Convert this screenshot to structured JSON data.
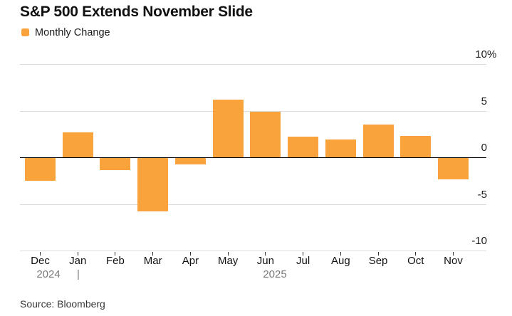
{
  "title": "S&P 500 Extends November Slide",
  "legend": {
    "label": "Monthly Change",
    "swatch_color": "#F8A33B"
  },
  "source": "Source: Bloomberg",
  "colors": {
    "bar": "#F8A33B",
    "gridline": "#DBDBDB",
    "zero_line": "#000000",
    "year_text": "#7A7A7A",
    "background": "#FFFFFF"
  },
  "chart_data": {
    "type": "bar",
    "title": "S&P 500 Extends November Slide",
    "series_name": "Monthly Change",
    "categories": [
      "Dec",
      "Jan",
      "Feb",
      "Mar",
      "Apr",
      "May",
      "Jun",
      "Jul",
      "Aug",
      "Sep",
      "Oct",
      "Nov"
    ],
    "values": [
      -2.5,
      2.7,
      -1.4,
      -5.8,
      -0.8,
      6.2,
      4.9,
      2.2,
      1.9,
      3.5,
      2.3,
      -2.4
    ],
    "unit": "%",
    "ylim": [
      -10,
      10
    ],
    "yticks": [
      10,
      5,
      0,
      -5,
      -10
    ],
    "ytick_labels": [
      "10%",
      "5",
      "0",
      "-5",
      "-10"
    ],
    "grid": true,
    "legend_position": "top-left",
    "x_year_row": {
      "left_year": "2024",
      "divider": "|",
      "right_year": "2025"
    }
  }
}
